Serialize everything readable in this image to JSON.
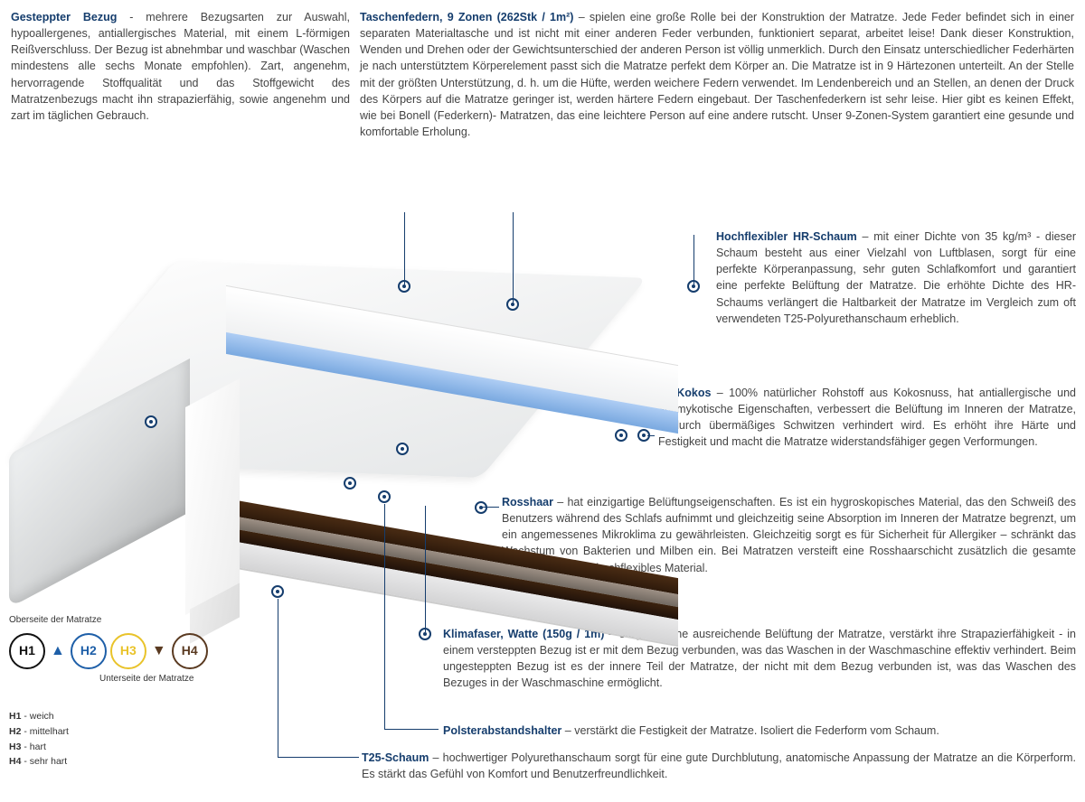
{
  "topLeft": {
    "title": "Gesteppter Bezug",
    "text": " - mehrere Bezugsarten zur Auswahl, hypoallergenes, antiallergisches Material, mit einem L-förmigen Reißverschluss. Der Bezug ist abnehmbar und waschbar (Waschen mindestens alle sechs Monate empfohlen). Zart, angenehm, hervorragende Stoffqualität und das Stoffgewicht des Matratzenbezugs macht ihn strapazierfähig, sowie angenehm und zart im täglichen Gebrauch."
  },
  "topRight": {
    "title": "Taschenfedern, 9 Zonen (262Stk / 1m²)",
    "text": " – spielen eine große Rolle bei der Konstruktion der Matratze. Jede Feder befindet sich in einer separaten Materialtasche und ist nicht mit einer anderen Feder verbunden, funktioniert separat, arbeitet leise! Dank dieser Konstruktion, Wenden und Drehen oder der Gewichtsunterschied der anderen Person ist völlig unmerklich. Durch den Einsatz unterschiedlicher Federhärten je nach unterstütztem Körperelement passt sich die Matratze perfekt dem Körper an. Die Matratze ist in 9 Härtezonen unterteilt. An der Stelle mit der größten Unterstützung, d. h. um die Hüfte, werden weichere Federn verwendet. Im Lendenbereich und an Stellen, an denen der Druck des Körpers auf die Matratze geringer ist, werden härtere Federn eingebaut. Der Taschenfederkern ist sehr leise. Hier gibt es keinen Effekt, wie bei Bonell (Federkern)- Matratzen, das eine leichtere Person auf eine andere rutscht. Unser 9-Zonen-System garantiert eine gesunde und komfortable Erholung."
  },
  "hrfoam": {
    "title": "Hochflexibler HR-Schaum",
    "text": " – mit einer Dichte von 35 kg/m³ - dieser Schaum besteht aus einer Vielzahl von Luftblasen, sorgt für eine perfekte Körperanpassung, sehr guten Schlafkomfort und garantiert eine perfekte Belüftung der Matratze. Die erhöhte Dichte des HR-Schaums verlängert die Haltbarkeit der Matratze im Vergleich zum oft verwendeten T25-Polyurethanschaum erheblich."
  },
  "kokos": {
    "title": "2x Kokos",
    "text": " – 100% natürlicher Rohstoff aus Kokosnuss, hat antiallergische und antimykotische Eigenschaften, verbessert die Belüftung im Inneren der Matratze, wodurch übermäßiges Schwitzen verhindert wird. Es erhöht ihre Härte und Festigkeit und macht die Matratze widerstandsfähiger gegen Verformungen."
  },
  "rosshaar": {
    "title": "Rosshaar",
    "text": " – hat einzigartige Belüftungseigenschaften. Es ist ein hygroskopisches Material, das den Schweiß des Benutzers während des Schlafs aufnimmt und gleichzeitig seine Absorption im Inneren der Matratze begrenzt, um ein angemessenes Mikroklima zu gewährleisten. Gleichzeitig sorgt es für Sicherheit für Allergiker – schränkt das Wachstum von Bakterien und Milben ein. Bei Matratzen versteift eine Rosshaarschicht zusätzlich die gesamte Struktur. Es ist ein hochflexibles Material."
  },
  "klima": {
    "title": "Klimafaser, Watte (150g / 1m)",
    "text": " – sorgt für eine ausreichende Belüftung der Matratze, verstärkt ihre Strapazierfähigkeit - in einem versteppten Bezug ist er mit dem Bezug verbunden, was das Waschen in der Waschmaschine effektiv verhindert. Beim ungesteppten Bezug ist es der innere Teil der Matratze, der nicht mit dem Bezug verbunden ist, was das Waschen des Bezuges in der Waschmaschine ermöglicht."
  },
  "polster": {
    "title": "Polsterabstandshalter",
    "text": " – verstärkt die Festigkeit der Matratze. Isoliert die Federform vom Schaum."
  },
  "t25": {
    "title": "T25-Schaum",
    "text": " – hochwertiger Polyurethanschaum sorgt für eine gute Durchblutung, anatomische Anpassung der Matratze an die Körperform. Es stärkt das Gefühl von Komfort und Benutzerfreundlichkeit."
  },
  "legend": {
    "top": "Oberseite der Matratze",
    "bottom": "Unterseite der Matratze",
    "items": [
      {
        "label": "H1",
        "color": "#111",
        "desc": "weich"
      },
      {
        "label": "H2",
        "color": "#1e5fa8",
        "desc": "mittelhart"
      },
      {
        "label": "H3",
        "color": "#e9c32a",
        "desc": "hart"
      },
      {
        "label": "H4",
        "color": "#5a3a21",
        "desc": "sehr hart"
      }
    ]
  },
  "springs": {
    "zonePattern": [
      "b",
      "b",
      "y",
      "b",
      "y",
      "b",
      "y",
      "b",
      "b",
      "y",
      "b",
      "y",
      "b",
      "y",
      "b",
      "b"
    ],
    "colors": {
      "b": "#2f62c4",
      "y": "#e9c32a"
    },
    "rowsPerCol": 20
  }
}
